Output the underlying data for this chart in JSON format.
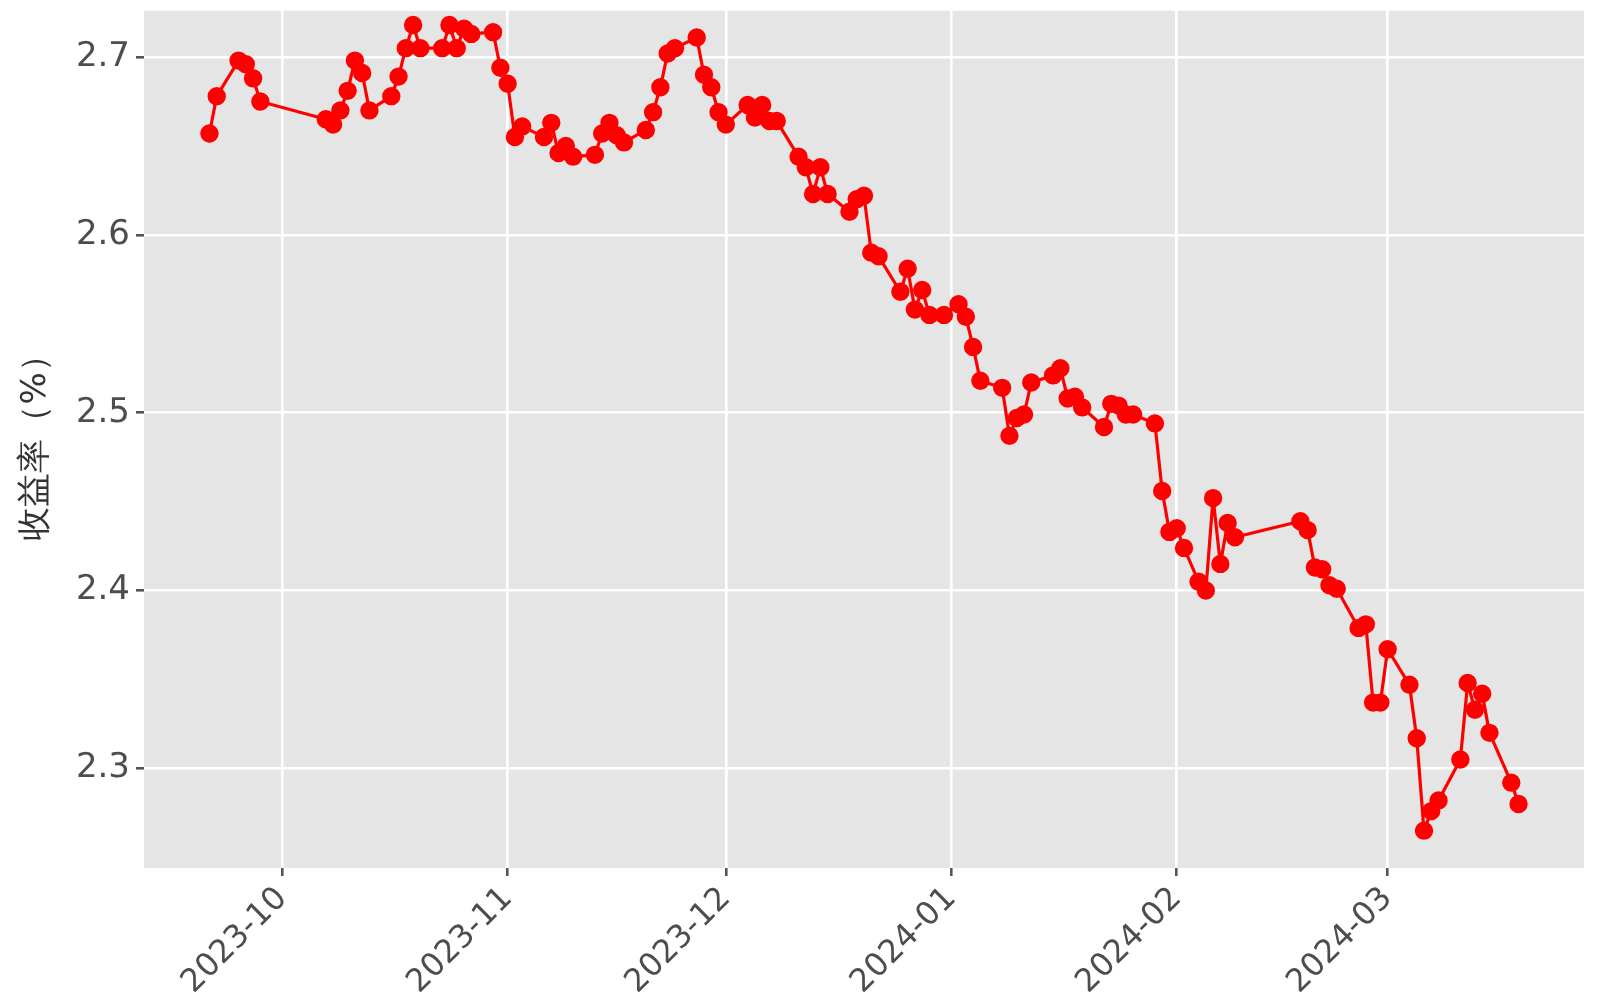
{
  "chart_data": {
    "type": "line",
    "ylabel": "收益率（%）",
    "x": [
      "2023-09-21",
      "2023-09-22",
      "2023-09-25",
      "2023-09-26",
      "2023-09-27",
      "2023-09-28",
      "2023-10-07",
      "2023-10-08",
      "2023-10-09",
      "2023-10-10",
      "2023-10-11",
      "2023-10-12",
      "2023-10-13",
      "2023-10-16",
      "2023-10-17",
      "2023-10-18",
      "2023-10-19",
      "2023-10-20",
      "2023-10-23",
      "2023-10-24",
      "2023-10-25",
      "2023-10-26",
      "2023-10-27",
      "2023-10-30",
      "2023-10-31",
      "2023-11-01",
      "2023-11-02",
      "2023-11-03",
      "2023-11-06",
      "2023-11-07",
      "2023-11-08",
      "2023-11-09",
      "2023-11-10",
      "2023-11-13",
      "2023-11-14",
      "2023-11-15",
      "2023-11-16",
      "2023-11-17",
      "2023-11-20",
      "2023-11-21",
      "2023-11-22",
      "2023-11-23",
      "2023-11-24",
      "2023-11-27",
      "2023-11-28",
      "2023-11-29",
      "2023-11-30",
      "2023-12-01",
      "2023-12-04",
      "2023-12-05",
      "2023-12-06",
      "2023-12-07",
      "2023-12-08",
      "2023-12-11",
      "2023-12-12",
      "2023-12-13",
      "2023-12-14",
      "2023-12-15",
      "2023-12-18",
      "2023-12-19",
      "2023-12-20",
      "2023-12-21",
      "2023-12-22",
      "2023-12-25",
      "2023-12-26",
      "2023-12-27",
      "2023-12-28",
      "2023-12-29",
      "2023-12-31",
      "2024-01-02",
      "2024-01-03",
      "2024-01-04",
      "2024-01-05",
      "2024-01-08",
      "2024-01-09",
      "2024-01-10",
      "2024-01-11",
      "2024-01-12",
      "2024-01-15",
      "2024-01-16",
      "2024-01-17",
      "2024-01-18",
      "2024-01-19",
      "2024-01-22",
      "2024-01-23",
      "2024-01-24",
      "2024-01-25",
      "2024-01-26",
      "2024-01-29",
      "2024-01-30",
      "2024-01-31",
      "2024-02-01",
      "2024-02-02",
      "2024-02-04",
      "2024-02-05",
      "2024-02-06",
      "2024-02-07",
      "2024-02-08",
      "2024-02-09",
      "2024-02-18",
      "2024-02-19",
      "2024-02-20",
      "2024-02-21",
      "2024-02-22",
      "2024-02-23",
      "2024-02-26",
      "2024-02-27",
      "2024-02-28",
      "2024-02-29",
      "2024-03-01",
      "2024-03-04",
      "2024-03-05",
      "2024-03-06",
      "2024-03-07",
      "2024-03-08",
      "2024-03-11",
      "2024-03-12",
      "2024-03-13",
      "2024-03-14",
      "2024-03-15",
      "2024-03-18",
      "2024-03-19"
    ],
    "series": [
      {
        "color": "#ff0000",
        "values": [
          2.657,
          2.678,
          2.698,
          2.696,
          2.688,
          2.675,
          2.665,
          2.662,
          2.67,
          2.681,
          2.698,
          2.691,
          2.67,
          2.678,
          2.689,
          2.705,
          2.718,
          2.705,
          2.705,
          2.718,
          2.705,
          2.716,
          2.713,
          2.714,
          2.694,
          2.685,
          2.655,
          2.661,
          2.655,
          2.663,
          2.646,
          2.65,
          2.644,
          2.645,
          2.657,
          2.663,
          2.656,
          2.652,
          2.659,
          2.669,
          2.683,
          2.702,
          2.705,
          2.711,
          2.69,
          2.683,
          2.669,
          2.662,
          2.673,
          2.666,
          2.673,
          2.664,
          2.664,
          2.644,
          2.638,
          2.623,
          2.638,
          2.623,
          2.613,
          2.62,
          2.622,
          2.59,
          2.588,
          2.568,
          2.581,
          2.558,
          2.569,
          2.555,
          2.555,
          2.561,
          2.554,
          2.537,
          2.518,
          2.514,
          2.487,
          2.497,
          2.499,
          2.517,
          2.521,
          2.525,
          2.508,
          2.509,
          2.503,
          2.492,
          2.505,
          2.504,
          2.499,
          2.499,
          2.494,
          2.456,
          2.433,
          2.435,
          2.424,
          2.405,
          2.4,
          2.452,
          2.415,
          2.438,
          2.43,
          2.439,
          2.434,
          2.413,
          2.412,
          2.403,
          2.401,
          2.379,
          2.381,
          2.337,
          2.337,
          2.367,
          2.347,
          2.317,
          2.265,
          2.276,
          2.282,
          2.305,
          2.348,
          2.333,
          2.342,
          2.32,
          2.292,
          2.28
        ]
      }
    ],
    "xlim": [
      "2023-09-12",
      "2024-03-28"
    ],
    "xticks": [
      "2023-10",
      "2023-11",
      "2023-12",
      "2024-01",
      "2024-02",
      "2024-03"
    ],
    "ylim": [
      2.244,
      2.726
    ],
    "yticks": [
      2.3,
      2.4,
      2.5,
      2.6,
      2.7
    ],
    "grid": true,
    "marker": "circle",
    "line_style": "solid"
  }
}
